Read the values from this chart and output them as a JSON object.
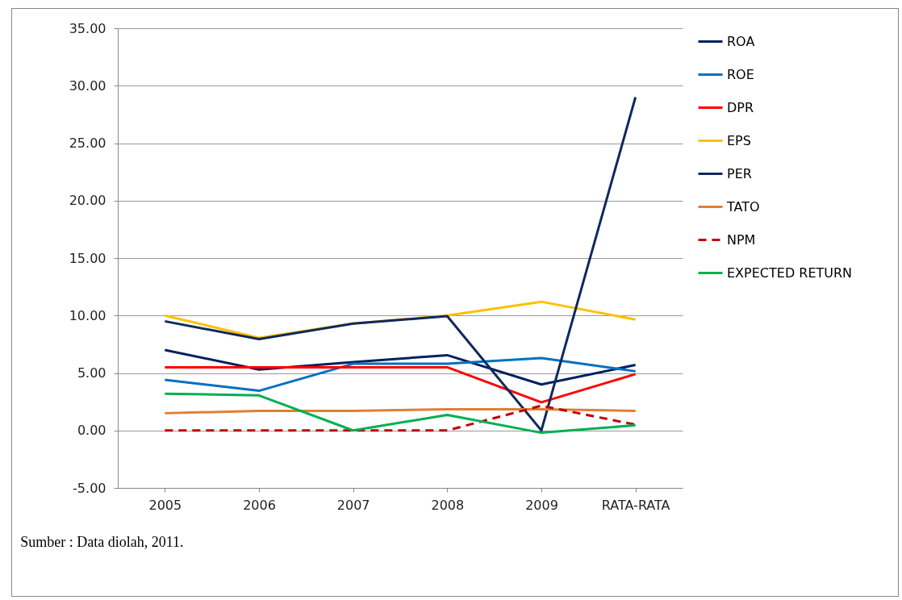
{
  "chart_data": {
    "type": "line",
    "categories": [
      "2005",
      "2006",
      "2007",
      "2008",
      "2009",
      "RATA-RATA"
    ],
    "series": [
      {
        "name": "ROA",
        "color": "#002060",
        "values": [
          7.0,
          5.3,
          5.95,
          6.55,
          4.0,
          5.7
        ]
      },
      {
        "name": "ROE",
        "color": "#0070c0",
        "values": [
          4.4,
          3.45,
          5.8,
          5.8,
          6.3,
          5.15
        ]
      },
      {
        "name": "DPR",
        "color": "#ff0000",
        "values": [
          5.5,
          5.5,
          5.5,
          5.5,
          2.45,
          4.9
        ]
      },
      {
        "name": "EPS",
        "color": "#ffc000",
        "values": [
          10.0,
          8.05,
          9.3,
          10.0,
          11.2,
          9.65
        ]
      },
      {
        "name": "PER",
        "color": "#0f2a5c",
        "values": [
          9.5,
          7.95,
          9.3,
          9.95,
          0.0,
          29.0
        ]
      },
      {
        "name": "TATO",
        "color": "#e07f35",
        "values": [
          1.5,
          1.7,
          1.7,
          1.85,
          1.85,
          1.7
        ]
      },
      {
        "name": "NPM",
        "color": "#c00000",
        "line_style": "dashed",
        "values": [
          0.0,
          0.0,
          0.0,
          0.0,
          2.15,
          0.5
        ]
      },
      {
        "name": "EXPECTED RETURN",
        "color": "#00b050",
        "values": [
          3.2,
          3.05,
          0.0,
          1.35,
          -0.2,
          0.45
        ]
      }
    ],
    "ylim": [
      -5,
      35
    ],
    "yticks": [
      {
        "value": -5,
        "label": "-5.00"
      },
      {
        "value": 0,
        "label": "0.00"
      },
      {
        "value": 5,
        "label": "5.00"
      },
      {
        "value": 10,
        "label": "10.00"
      },
      {
        "value": 15,
        "label": "15.00"
      },
      {
        "value": 20,
        "label": "20.00"
      },
      {
        "value": 25,
        "label": "25.00"
      },
      {
        "value": 30,
        "label": "30.00"
      },
      {
        "value": 35,
        "label": "35.00"
      }
    ],
    "grid": "y",
    "legend": "right",
    "marker": "none",
    "annotations": [
      "Sumber : Data diolah, 2011."
    ]
  }
}
